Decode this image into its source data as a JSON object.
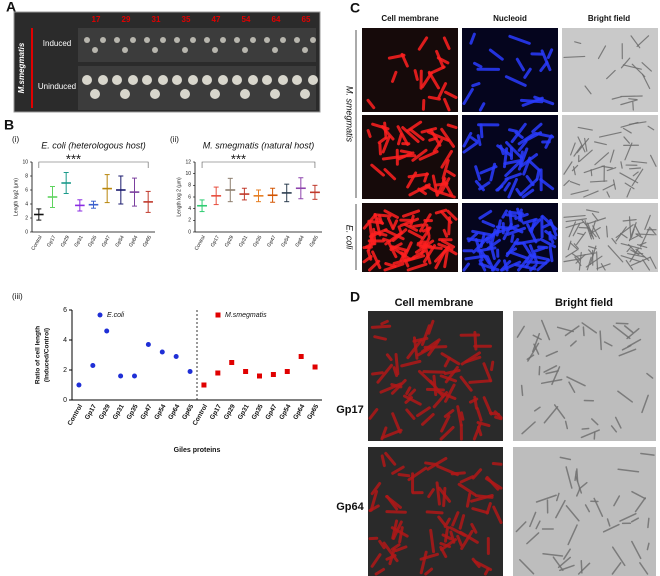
{
  "figure": {
    "panel_labels": [
      "A",
      "B",
      "C",
      "D"
    ],
    "panel_a": {
      "strains": [
        "17",
        "29",
        "31",
        "35",
        "47",
        "54",
        "64",
        "65"
      ],
      "rows": [
        "Induced",
        "Uninduced"
      ],
      "organism": "M.smegmatis"
    },
    "panel_b_labels": [
      "(i)",
      "(ii)",
      "(iii)"
    ],
    "panel_c": {
      "columns": [
        "Cell membrane",
        "Nucleoid",
        "Bright field"
      ],
      "rows": [
        "M. smegmatis",
        "E. coli"
      ]
    },
    "panel_d": {
      "columns": [
        "Cell membrane",
        "Bright field"
      ],
      "rows": [
        "Gp17",
        "Gp64"
      ]
    }
  },
  "chart_data": [
    {
      "type": "errorbar",
      "title": "E. coli (heterologous host)",
      "ylabel": "Length log2 (µm)",
      "categories": [
        "Control",
        "Gp17",
        "Gp29",
        "Gp31",
        "Gp35",
        "Gp47",
        "Gp54",
        "Gp64",
        "Gp65"
      ],
      "values": [
        2.5,
        5,
        7,
        3.8,
        3.9,
        6.2,
        6,
        5.7,
        4.3
      ],
      "errors": [
        0.8,
        1.5,
        1.5,
        0.8,
        0.5,
        2,
        2,
        2,
        1.5
      ],
      "colors": [
        "#111111",
        "#5fd35f",
        "#1a9a8a",
        "#8a2be2",
        "#3a5fcd",
        "#b8860b",
        "#1a1a6e",
        "#7b3f9e",
        "#c0392b"
      ],
      "ylim": [
        0,
        10
      ],
      "yticks": [
        0,
        2,
        4,
        6,
        8,
        10
      ],
      "annotation": "***"
    },
    {
      "type": "errorbar",
      "title": "M. smegmatis (natural host)",
      "ylabel": "Length log 2 (µm)",
      "categories": [
        "Control",
        "Gp17",
        "Gp29",
        "Gp31",
        "Gp35",
        "Gp47",
        "Gp54",
        "Gp64",
        "Gp65"
      ],
      "values": [
        4.5,
        6.2,
        7.2,
        6.5,
        6.2,
        6.3,
        6.7,
        7.5,
        6.8
      ],
      "errors": [
        1,
        1.5,
        2,
        1,
        1,
        1.2,
        1.5,
        1.8,
        1.2
      ],
      "colors": [
        "#2ecc71",
        "#e74c3c",
        "#8e7f6f",
        "#c0392b",
        "#e67e22",
        "#d35400",
        "#2c3e50",
        "#8e44ad",
        "#c0392b"
      ],
      "ylim": [
        0,
        12
      ],
      "yticks": [
        0,
        2,
        4,
        6,
        8,
        10,
        12
      ],
      "annotation": "***"
    },
    {
      "type": "scatter",
      "xlabel": "Giles proteins",
      "ylabel": [
        "Ratio of cell length",
        "(Induced/Control)"
      ],
      "categories": [
        "Control",
        "Gp17",
        "Gp29",
        "Gp31",
        "Gp35",
        "Gp47",
        "Gp54",
        "Gp64",
        "Gp65",
        "Control",
        "Gp17",
        "Gp29",
        "Gp31",
        "Gp35",
        "Gp47",
        "Gp54",
        "Gp64",
        "Gp65"
      ],
      "series": [
        {
          "name": "E.coli",
          "color": "#1f2fd6",
          "marker": "circle",
          "values": [
            1,
            2.3,
            4.6,
            1.6,
            1.6,
            3.7,
            3.2,
            2.9,
            1.9,
            null,
            null,
            null,
            null,
            null,
            null,
            null,
            null,
            null
          ]
        },
        {
          "name": "M.smegmatis",
          "color": "#e00000",
          "marker": "square",
          "values": [
            null,
            null,
            null,
            null,
            null,
            null,
            null,
            null,
            null,
            1,
            1.8,
            2.5,
            1.9,
            1.6,
            1.7,
            1.9,
            2.9,
            2.2
          ]
        }
      ],
      "ylim": [
        0,
        6
      ],
      "yticks": [
        0,
        2,
        4,
        6
      ]
    }
  ]
}
